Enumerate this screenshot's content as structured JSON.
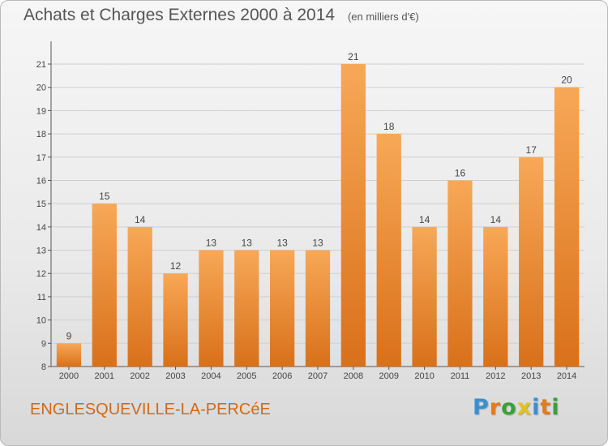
{
  "header": {
    "title": "Achats et Charges Externes 2000 à 2014",
    "subtitle": "(en milliers d'€)"
  },
  "commune": "ENGLESQUEVILLE-LA-PERCéE",
  "logo": {
    "text": "Proxiti",
    "letters": [
      {
        "ch": "P",
        "color": "#3a8fd0"
      },
      {
        "ch": "r",
        "color": "#e47b1c"
      },
      {
        "ch": "o",
        "color": "#3aa03a"
      },
      {
        "ch": "x",
        "color": "#e4c21c"
      },
      {
        "ch": "i",
        "color": "#3a8fd0"
      },
      {
        "ch": "t",
        "color": "#e47b1c"
      },
      {
        "ch": "i",
        "color": "#3aa03a"
      }
    ]
  },
  "colors": {
    "bar_top": "#f7a857",
    "bar_bottom": "#d9701a",
    "grid": "#cfcfcf",
    "axis": "#555555",
    "text": "#444444",
    "accent": "#d06a18"
  },
  "chart_data": {
    "type": "bar",
    "title": "Achats et Charges Externes 2000 à 2014",
    "subtitle": "(en milliers d'€)",
    "categories": [
      "2000",
      "2001",
      "2002",
      "2003",
      "2004",
      "2005",
      "2006",
      "2007",
      "2008",
      "2009",
      "2010",
      "2011",
      "2012",
      "2013",
      "2014"
    ],
    "values": [
      9,
      15,
      14,
      12,
      13,
      13,
      13,
      13,
      21,
      18,
      14,
      16,
      14,
      17,
      20
    ],
    "xlabel": "",
    "ylabel": "",
    "ylim": [
      8,
      21
    ],
    "yticks": [
      8,
      9,
      10,
      11,
      12,
      13,
      14,
      15,
      16,
      17,
      18,
      19,
      20,
      21
    ],
    "grid": true,
    "data_labels": true
  }
}
